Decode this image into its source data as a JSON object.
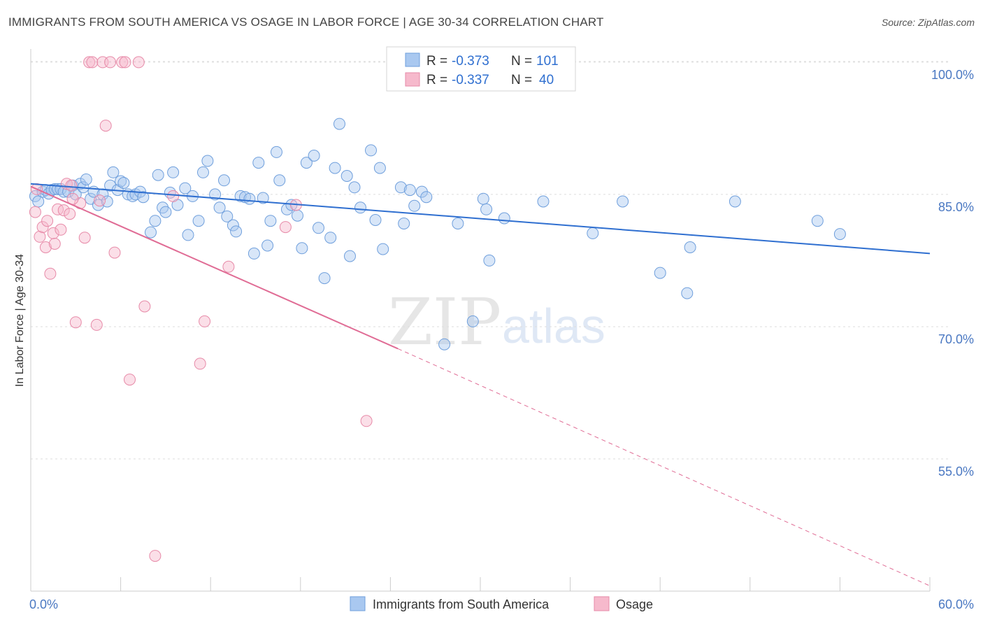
{
  "header": {
    "title": "IMMIGRANTS FROM SOUTH AMERICA VS OSAGE IN LABOR FORCE | AGE 30-34 CORRELATION CHART",
    "source": "Source: ZipAtlas.com"
  },
  "watermark": {
    "zip": "ZIP",
    "atlas": "atlas"
  },
  "legend": {
    "rows": [
      {
        "r_label": "R =",
        "r_value": "-0.373",
        "n_label": "N =",
        "n_value": "101",
        "color": "#a9c8f0"
      },
      {
        "r_label": "R =",
        "r_value": "-0.337",
        "n_label": "N =",
        "n_value": "40",
        "color": "#f6b9cc"
      }
    ]
  },
  "chart_data": {
    "type": "scatter",
    "ylabel": "In Labor Force | Age 30-34",
    "xlim": [
      0,
      60
    ],
    "ylim": [
      40,
      101.5
    ],
    "x_tick_labels": [
      "0.0%",
      "60.0%"
    ],
    "y_ticks": [
      {
        "value": 100,
        "label": "100.0%"
      },
      {
        "value": 85,
        "label": "85.0%"
      },
      {
        "value": 70,
        "label": "70.0%"
      },
      {
        "value": 55,
        "label": "55.0%"
      }
    ],
    "grid": "horizontal-dashed",
    "series": [
      {
        "name": "Immigrants from South America",
        "color": "#a9c8f0",
        "stroke": "#6f9fdc",
        "trend_color": "#2f6fd0",
        "trend": {
          "x0": 0,
          "y0": 86.2,
          "x1": 60,
          "y1": 78.3
        },
        "points": [
          [
            0.3,
            84.8
          ],
          [
            0.5,
            84.2
          ],
          [
            0.8,
            85.3
          ],
          [
            1.0,
            85.5
          ],
          [
            1.2,
            85.1
          ],
          [
            1.4,
            85.5
          ],
          [
            1.6,
            85.6
          ],
          [
            1.8,
            85.6
          ],
          [
            2.0,
            85.6
          ],
          [
            2.2,
            85.3
          ],
          [
            2.5,
            85.3
          ],
          [
            2.8,
            86.0
          ],
          [
            3.0,
            85.0
          ],
          [
            3.3,
            86.2
          ],
          [
            3.5,
            85.8
          ],
          [
            3.7,
            86.7
          ],
          [
            4.0,
            84.5
          ],
          [
            4.2,
            85.3
          ],
          [
            4.5,
            83.8
          ],
          [
            4.8,
            85.0
          ],
          [
            5.1,
            84.2
          ],
          [
            5.3,
            86.0
          ],
          [
            5.5,
            87.5
          ],
          [
            5.8,
            85.5
          ],
          [
            6.0,
            86.5
          ],
          [
            6.2,
            86.3
          ],
          [
            6.5,
            85.0
          ],
          [
            6.8,
            84.8
          ],
          [
            7.0,
            85.0
          ],
          [
            7.3,
            85.3
          ],
          [
            7.5,
            84.7
          ],
          [
            8.0,
            80.7
          ],
          [
            8.3,
            82.0
          ],
          [
            8.5,
            87.2
          ],
          [
            8.8,
            83.5
          ],
          [
            9.0,
            83.0
          ],
          [
            9.3,
            85.2
          ],
          [
            9.5,
            87.5
          ],
          [
            9.8,
            83.8
          ],
          [
            10.3,
            85.7
          ],
          [
            10.5,
            80.4
          ],
          [
            10.8,
            84.8
          ],
          [
            11.2,
            82.0
          ],
          [
            11.5,
            87.5
          ],
          [
            11.8,
            88.8
          ],
          [
            12.3,
            85.0
          ],
          [
            12.6,
            83.5
          ],
          [
            12.9,
            86.6
          ],
          [
            13.1,
            82.5
          ],
          [
            13.5,
            81.5
          ],
          [
            13.7,
            80.8
          ],
          [
            14.0,
            84.8
          ],
          [
            14.3,
            84.7
          ],
          [
            14.6,
            84.5
          ],
          [
            14.9,
            78.3
          ],
          [
            15.2,
            88.6
          ],
          [
            15.5,
            84.6
          ],
          [
            15.8,
            79.2
          ],
          [
            16.0,
            82.0
          ],
          [
            16.4,
            89.8
          ],
          [
            16.6,
            86.6
          ],
          [
            17.1,
            83.3
          ],
          [
            17.4,
            83.8
          ],
          [
            17.8,
            82.6
          ],
          [
            18.1,
            78.9
          ],
          [
            18.4,
            88.6
          ],
          [
            18.9,
            89.4
          ],
          [
            19.2,
            81.2
          ],
          [
            19.6,
            75.5
          ],
          [
            20.0,
            80.1
          ],
          [
            20.3,
            88.0
          ],
          [
            20.6,
            93.0
          ],
          [
            21.1,
            87.1
          ],
          [
            21.3,
            78.0
          ],
          [
            21.6,
            85.8
          ],
          [
            22.0,
            83.5
          ],
          [
            22.7,
            90.0
          ],
          [
            23.0,
            82.1
          ],
          [
            23.3,
            88.0
          ],
          [
            23.5,
            78.8
          ],
          [
            24.7,
            85.8
          ],
          [
            24.9,
            81.7
          ],
          [
            25.3,
            85.5
          ],
          [
            25.6,
            83.7
          ],
          [
            26.1,
            85.3
          ],
          [
            26.4,
            84.7
          ],
          [
            27.6,
            68.0
          ],
          [
            28.5,
            81.7
          ],
          [
            29.5,
            70.6
          ],
          [
            30.2,
            84.5
          ],
          [
            30.4,
            83.3
          ],
          [
            30.6,
            77.5
          ],
          [
            31.6,
            82.3
          ],
          [
            34.2,
            84.2
          ],
          [
            37.5,
            80.6
          ],
          [
            39.5,
            84.2
          ],
          [
            42.0,
            76.1
          ],
          [
            43.8,
            73.8
          ],
          [
            44.0,
            79.0
          ],
          [
            47.0,
            84.2
          ],
          [
            52.5,
            82.0
          ],
          [
            54.0,
            80.5
          ]
        ]
      },
      {
        "name": "Osage",
        "color": "#f6b9cc",
        "stroke": "#e78aa8",
        "trend_color": "#e06c95",
        "trend": {
          "x0": 0,
          "y0": 85.9,
          "x1": 24.5,
          "y1": 67.5,
          "x_dash_end": 60,
          "y_dash_end": 40.6
        },
        "points": [
          [
            0.3,
            83.0
          ],
          [
            0.6,
            80.2
          ],
          [
            0.8,
            81.3
          ],
          [
            1.0,
            79.0
          ],
          [
            1.3,
            76.0
          ],
          [
            1.5,
            80.6
          ],
          [
            1.8,
            83.3
          ],
          [
            2.0,
            81.0
          ],
          [
            2.2,
            83.2
          ],
          [
            2.4,
            86.2
          ],
          [
            2.6,
            82.8
          ],
          [
            3.0,
            70.5
          ],
          [
            3.3,
            84.0
          ],
          [
            3.6,
            80.1
          ],
          [
            3.9,
            100.0
          ],
          [
            4.1,
            100.0
          ],
          [
            4.4,
            70.2
          ],
          [
            4.8,
            100.0
          ],
          [
            5.0,
            92.8
          ],
          [
            5.3,
            100.0
          ],
          [
            5.6,
            78.4
          ],
          [
            6.1,
            100.0
          ],
          [
            6.3,
            100.0
          ],
          [
            6.6,
            64.0
          ],
          [
            7.2,
            100.0
          ],
          [
            7.6,
            72.3
          ],
          [
            8.3,
            44.0
          ],
          [
            9.5,
            84.8
          ],
          [
            11.3,
            65.8
          ],
          [
            11.6,
            70.6
          ],
          [
            13.2,
            76.8
          ],
          [
            17.0,
            81.3
          ],
          [
            17.7,
            83.8
          ],
          [
            22.4,
            59.3
          ],
          [
            2.8,
            84.5
          ],
          [
            1.1,
            82.0
          ],
          [
            0.4,
            85.6
          ],
          [
            2.7,
            86.0
          ],
          [
            4.6,
            84.3
          ],
          [
            1.6,
            79.4
          ]
        ]
      }
    ]
  }
}
